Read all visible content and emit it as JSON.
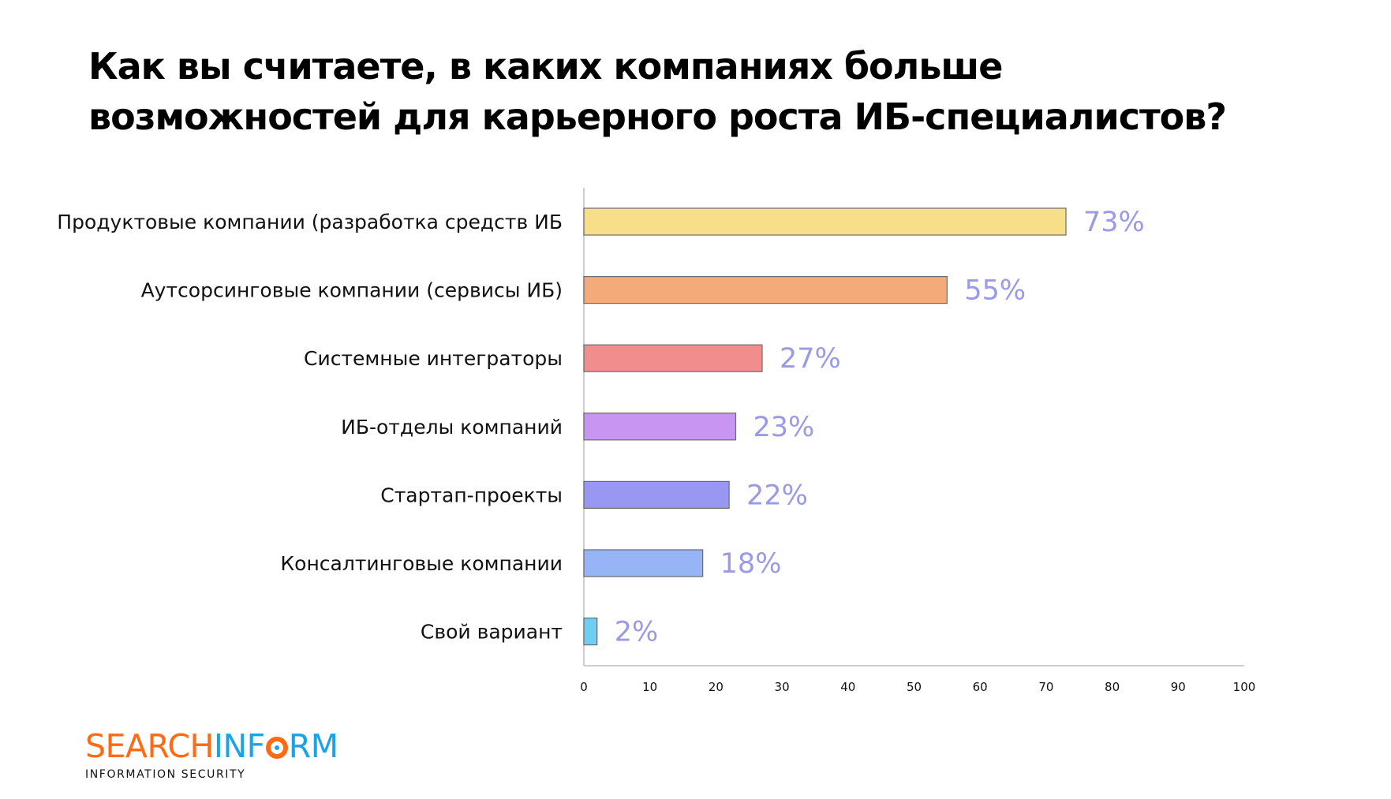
{
  "title_lines": [
    "Как вы считаете, в каких компаниях больше",
    "возможностей для карьерного роста ИБ-специалистов?"
  ],
  "chart_data": {
    "type": "bar",
    "orientation": "horizontal",
    "title": "Как вы считаете, в каких компаниях больше возможностей для карьерного роста ИБ-специалистов?",
    "categories": [
      "Продуктовые компании (разработка средств ИБ",
      "Аутсорсинговые компании (сервисы ИБ)",
      "Системные интеграторы",
      "ИБ-отделы компаний",
      "Стартап-проекты",
      "Консалтинговые компании",
      "Свой вариант"
    ],
    "values": [
      73,
      55,
      27,
      23,
      22,
      18,
      2
    ],
    "data_labels": [
      "73%",
      "55%",
      "27%",
      "23%",
      "22%",
      "18%",
      "2%"
    ],
    "colors": [
      "#f6df88",
      "#f4ab7a",
      "#f28d8d",
      "#c896f2",
      "#9898f2",
      "#96b4f6",
      "#6ecff2"
    ],
    "label_color": "#9a9ae6",
    "xlim": [
      0,
      100
    ],
    "xticks": [
      0,
      10,
      20,
      30,
      40,
      50,
      60,
      70,
      80,
      90,
      100
    ],
    "xlabel": "",
    "ylabel": "",
    "grid": false,
    "legend": "none"
  },
  "logo": {
    "text_orange": "SEARCH",
    "text_blue_1": "INF",
    "text_blue_2": "RM",
    "subtitle": "INFORMATION SECURITY"
  }
}
